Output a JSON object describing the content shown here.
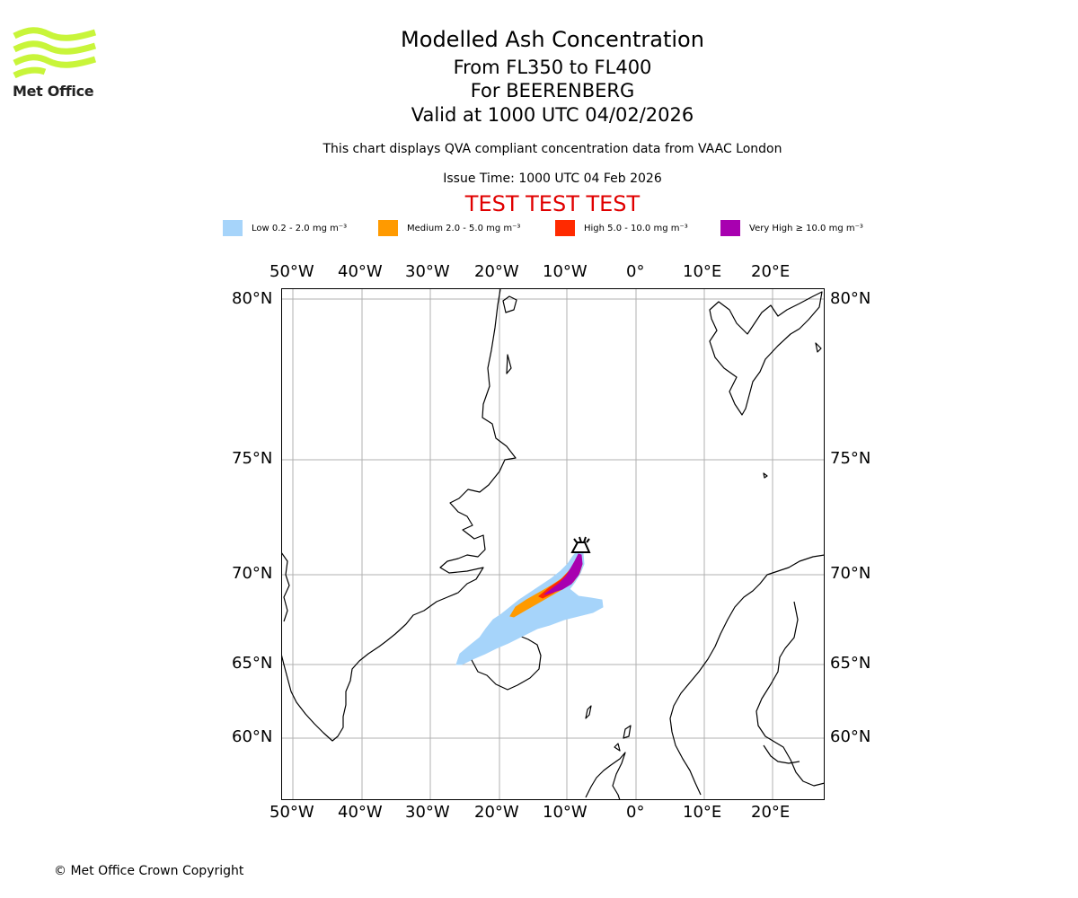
{
  "logo": {
    "text": "Met Office",
    "color": "#c8f53a"
  },
  "titles": {
    "main": "Modelled Ash Concentration",
    "levels": "From FL350 to FL400",
    "volcano": "For BEERENBERG",
    "valid": "Valid at 1000 UTC 04/02/2026"
  },
  "subtitle": "This chart displays QVA compliant concentration data from VAAC London",
  "issue_time": "Issue Time: 1000 UTC 04 Feb 2026",
  "test_banner": "TEST TEST TEST",
  "legend": [
    {
      "label": "Low 0.2 - 2.0 mg m⁻³",
      "color": "#a6d4fa"
    },
    {
      "label": "Medium 2.0 - 5.0 mg m⁻³",
      "color": "#ff9a00"
    },
    {
      "label": "High 5.0 - 10.0 mg m⁻³",
      "color": "#ff2a00"
    },
    {
      "label": "Very High  ≥  10.0 mg m⁻³",
      "color": "#a800b0"
    }
  ],
  "map": {
    "lon_labels": [
      "50°W",
      "40°W",
      "30°W",
      "20°W",
      "10°W",
      "0°",
      "10°E",
      "20°E"
    ],
    "lat_labels": [
      "80°N",
      "75°N",
      "70°N",
      "65°N",
      "60°N"
    ],
    "volcano_location": {
      "name": "BEERENBERG",
      "lat": 71.1,
      "lon": -8.2
    }
  },
  "copyright": "© Met Office Crown Copyright"
}
